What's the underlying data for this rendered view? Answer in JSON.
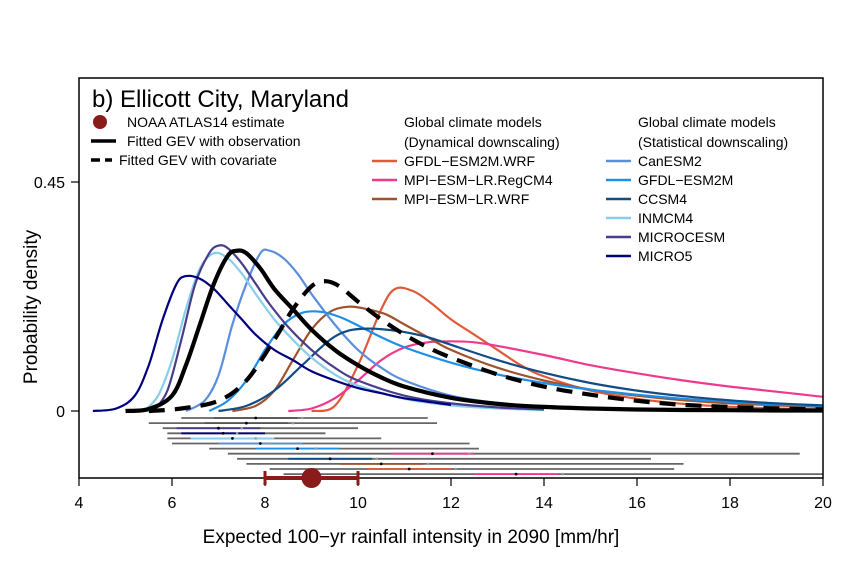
{
  "chart_data": {
    "type": "line",
    "title": "b) Ellicott City, Maryland",
    "xlabel": "Expected 100−yr rainfall intensity in 2090 [mm/hr]",
    "ylabel": "Probability density",
    "xlim": [
      4,
      20
    ],
    "ylim": [
      0,
      0.45
    ],
    "xticks": [
      "4",
      "6",
      "8",
      "10",
      "12",
      "14",
      "16",
      "18",
      "20"
    ],
    "yticks": [
      {
        "v": 0,
        "label": "0"
      },
      {
        "v": 0.45,
        "label": "0.45"
      }
    ],
    "legend_left": [
      {
        "label": "NOAA ATLAS14 estimate",
        "kind": "point",
        "color": "#8b1a1a"
      },
      {
        "label": "Fitted GEV with observation",
        "kind": "solid",
        "color": "#000000"
      },
      {
        "label": "Fitted GEV with covariate",
        "kind": "dashed",
        "color": "#000000"
      }
    ],
    "legend_dyn_title": [
      "Global climate models",
      "(Dynamical downscaling)"
    ],
    "legend_stat_title": [
      "Global climate models",
      "(Statistical downscaling)"
    ],
    "series": [
      {
        "name": "GFDL−ESM2M.WRF",
        "group": "dyn",
        "color": "#e05a3a",
        "width": 2.2,
        "x": [
          9,
          9.5,
          10,
          10.5,
          10.8,
          11.2,
          11.6,
          12,
          12.5,
          13,
          13.5,
          14,
          15,
          16,
          17,
          18,
          19,
          20
        ],
        "y": [
          0,
          0.01,
          0.09,
          0.2,
          0.24,
          0.235,
          0.21,
          0.18,
          0.15,
          0.12,
          0.09,
          0.068,
          0.04,
          0.024,
          0.014,
          0.008,
          0.005,
          0.003
        ]
      },
      {
        "name": "MPI−ESM−LR.RegCM4",
        "group": "dyn",
        "color": "#ee3a8c",
        "width": 2.2,
        "x": [
          8.5,
          9,
          9.5,
          10,
          10.5,
          11,
          11.5,
          12,
          12.5,
          13,
          14,
          15,
          16,
          17,
          18,
          19,
          20
        ],
        "y": [
          0,
          0.005,
          0.025,
          0.06,
          0.1,
          0.125,
          0.135,
          0.137,
          0.135,
          0.128,
          0.11,
          0.09,
          0.074,
          0.06,
          0.048,
          0.038,
          0.028
        ]
      },
      {
        "name": "MPI−ESM−LR.WRF",
        "group": "dyn",
        "color": "#a0522d",
        "width": 2.2,
        "x": [
          7.3,
          7.8,
          8.2,
          8.6,
          9,
          9.4,
          9.8,
          10.2,
          10.6,
          11,
          11.5,
          12,
          13,
          14,
          15,
          16,
          17,
          18,
          19,
          20
        ],
        "y": [
          0,
          0.01,
          0.04,
          0.1,
          0.16,
          0.195,
          0.205,
          0.2,
          0.19,
          0.17,
          0.145,
          0.12,
          0.085,
          0.06,
          0.042,
          0.03,
          0.021,
          0.015,
          0.011,
          0.008
        ]
      },
      {
        "name": "CanESM2",
        "group": "stat",
        "color": "#5b8fdd",
        "width": 2.2,
        "x": [
          6.3,
          6.7,
          7,
          7.3,
          7.6,
          7.9,
          8.1,
          8.4,
          8.7,
          9,
          9.5,
          10,
          10.5,
          11,
          12,
          13,
          14,
          15,
          16
        ],
        "y": [
          0,
          0.02,
          0.07,
          0.17,
          0.25,
          0.31,
          0.315,
          0.3,
          0.27,
          0.23,
          0.17,
          0.12,
          0.085,
          0.06,
          0.03,
          0.016,
          0.008,
          0.004,
          0.002
        ]
      },
      {
        "name": "GFDL−ESM2M",
        "group": "stat",
        "color": "#1e8fe8",
        "width": 2.2,
        "x": [
          6.8,
          7.2,
          7.6,
          8,
          8.4,
          8.8,
          9.2,
          9.6,
          10,
          10.5,
          11,
          12,
          13,
          14,
          15,
          16,
          17,
          18,
          19,
          20
        ],
        "y": [
          0,
          0.02,
          0.06,
          0.12,
          0.17,
          0.193,
          0.195,
          0.185,
          0.168,
          0.145,
          0.125,
          0.095,
          0.072,
          0.055,
          0.042,
          0.032,
          0.024,
          0.018,
          0.013,
          0.01
        ]
      },
      {
        "name": "CCSM4",
        "group": "stat",
        "color": "#134b85",
        "width": 2.2,
        "x": [
          7,
          7.6,
          8.2,
          8.8,
          9.4,
          9.8,
          10.2,
          10.6,
          11,
          11.5,
          12,
          13,
          14,
          15,
          16,
          17,
          18,
          19,
          20
        ],
        "y": [
          0,
          0.01,
          0.04,
          0.09,
          0.14,
          0.158,
          0.162,
          0.16,
          0.155,
          0.145,
          0.13,
          0.1,
          0.075,
          0.055,
          0.04,
          0.029,
          0.021,
          0.015,
          0.011
        ]
      },
      {
        "name": "INMCM4",
        "group": "stat",
        "color": "#87ceeb",
        "width": 2.2,
        "x": [
          5.4,
          5.7,
          6,
          6.3,
          6.6,
          6.9,
          7.2,
          7.5,
          7.8,
          8.2,
          8.6,
          9,
          9.5,
          10,
          11,
          12,
          13,
          14
        ],
        "y": [
          0,
          0.03,
          0.1,
          0.2,
          0.28,
          0.31,
          0.3,
          0.27,
          0.23,
          0.18,
          0.14,
          0.105,
          0.072,
          0.05,
          0.024,
          0.011,
          0.005,
          0.002
        ]
      },
      {
        "name": "MICROCESM",
        "group": "stat",
        "color": "#483d8b",
        "width": 2.2,
        "x": [
          5.6,
          5.9,
          6.2,
          6.5,
          6.8,
          7,
          7.2,
          7.5,
          7.8,
          8.1,
          8.5,
          9,
          9.5,
          10,
          11,
          12,
          13,
          14
        ],
        "y": [
          0,
          0.04,
          0.14,
          0.25,
          0.31,
          0.325,
          0.32,
          0.29,
          0.25,
          0.21,
          0.165,
          0.12,
          0.085,
          0.06,
          0.03,
          0.015,
          0.007,
          0.003
        ]
      },
      {
        "name": "MICRO5",
        "group": "stat",
        "color": "#00007f",
        "width": 2.2,
        "x": [
          4.3,
          4.8,
          5.2,
          5.5,
          5.8,
          6.1,
          6.3,
          6.6,
          6.9,
          7.2,
          7.5,
          7.8,
          8.2,
          8.6,
          9,
          9.5,
          10,
          10.5,
          11,
          12
        ],
        "y": [
          0,
          0.005,
          0.03,
          0.09,
          0.18,
          0.25,
          0.265,
          0.26,
          0.24,
          0.21,
          0.18,
          0.15,
          0.12,
          0.1,
          0.078,
          0.06,
          0.045,
          0.035,
          0.025,
          0.012
        ]
      },
      {
        "name": "Fitted GEV with observation",
        "group": "obs",
        "color": "#000000",
        "width": 4.2,
        "x": [
          5,
          5.5,
          6,
          6.3,
          6.6,
          6.9,
          7.2,
          7.4,
          7.6,
          7.9,
          8.2,
          8.6,
          9,
          9.5,
          10,
          10.5,
          11,
          12,
          13,
          14,
          15,
          16,
          17,
          18,
          19,
          20
        ],
        "y": [
          0,
          0.004,
          0.03,
          0.09,
          0.17,
          0.25,
          0.305,
          0.315,
          0.31,
          0.28,
          0.24,
          0.2,
          0.16,
          0.12,
          0.09,
          0.066,
          0.048,
          0.026,
          0.014,
          0.008,
          0.005,
          0.003,
          0.002,
          0.0015,
          0.001,
          0.001
        ]
      },
      {
        "name": "Fitted GEV with covariate",
        "group": "cov",
        "color": "#000000",
        "width": 4.2,
        "dashed": true,
        "x": [
          5.5,
          6.2,
          7,
          7.6,
          8.2,
          8.6,
          9,
          9.3,
          9.6,
          10,
          10.5,
          11,
          11.5,
          12,
          13,
          14,
          15,
          16,
          17,
          18,
          19,
          20
        ],
        "y": [
          0,
          0.005,
          0.02,
          0.06,
          0.14,
          0.2,
          0.245,
          0.255,
          0.245,
          0.215,
          0.18,
          0.15,
          0.125,
          0.105,
          0.072,
          0.048,
          0.032,
          0.02,
          0.012,
          0.008,
          0.005,
          0.003
        ]
      }
    ],
    "intervals": [
      {
        "lo": 6.2,
        "hi": 11.5,
        "mid": 7.8,
        "mean": 8.8,
        "color": "#555555"
      },
      {
        "lo": 5.5,
        "hi": 11.7,
        "mid": 7.6,
        "mean": 8.6,
        "color": "#555555"
      },
      {
        "lo": 5.8,
        "hi": 10.0,
        "mid": 7.0,
        "mean": 7.5,
        "color": "#483d8b"
      },
      {
        "lo": 5.9,
        "hi": 9.3,
        "mid": 7.1,
        "mean": 7.4,
        "color": "#00007f"
      },
      {
        "lo": 5.9,
        "hi": 10.5,
        "mid": 7.3,
        "mean": 7.8,
        "color": "#87ceeb"
      },
      {
        "lo": 6.0,
        "hi": 12.4,
        "mid": 7.9,
        "mean": 8.1,
        "color": "#5b8fdd"
      },
      {
        "lo": 6.8,
        "hi": 12.6,
        "mid": 8.7,
        "mean": 9.1,
        "color": "#1e8fe8"
      },
      {
        "lo": 7.2,
        "hi": 19.5,
        "mid": 11.6,
        "mean": 12.4,
        "color": "#ee3a8c"
      },
      {
        "lo": 7.4,
        "hi": 16.3,
        "mid": 9.4,
        "mean": 10.4,
        "color": "#134b85"
      },
      {
        "lo": 7.6,
        "hi": 17.0,
        "mid": 10.5,
        "mean": 11.5,
        "color": "#a0522d"
      },
      {
        "lo": 8.1,
        "hi": 16.8,
        "mid": 11.1,
        "mean": 12.1,
        "color": "#e05a3a"
      },
      {
        "lo": 8.4,
        "hi": 20.0,
        "mid": 13.4,
        "mean": 14.4,
        "color": "#ee3a8c"
      }
    ],
    "noaa": {
      "estimate": 9.0,
      "lo": 8.0,
      "hi": 10.0,
      "color": "#8b1a1a"
    }
  }
}
